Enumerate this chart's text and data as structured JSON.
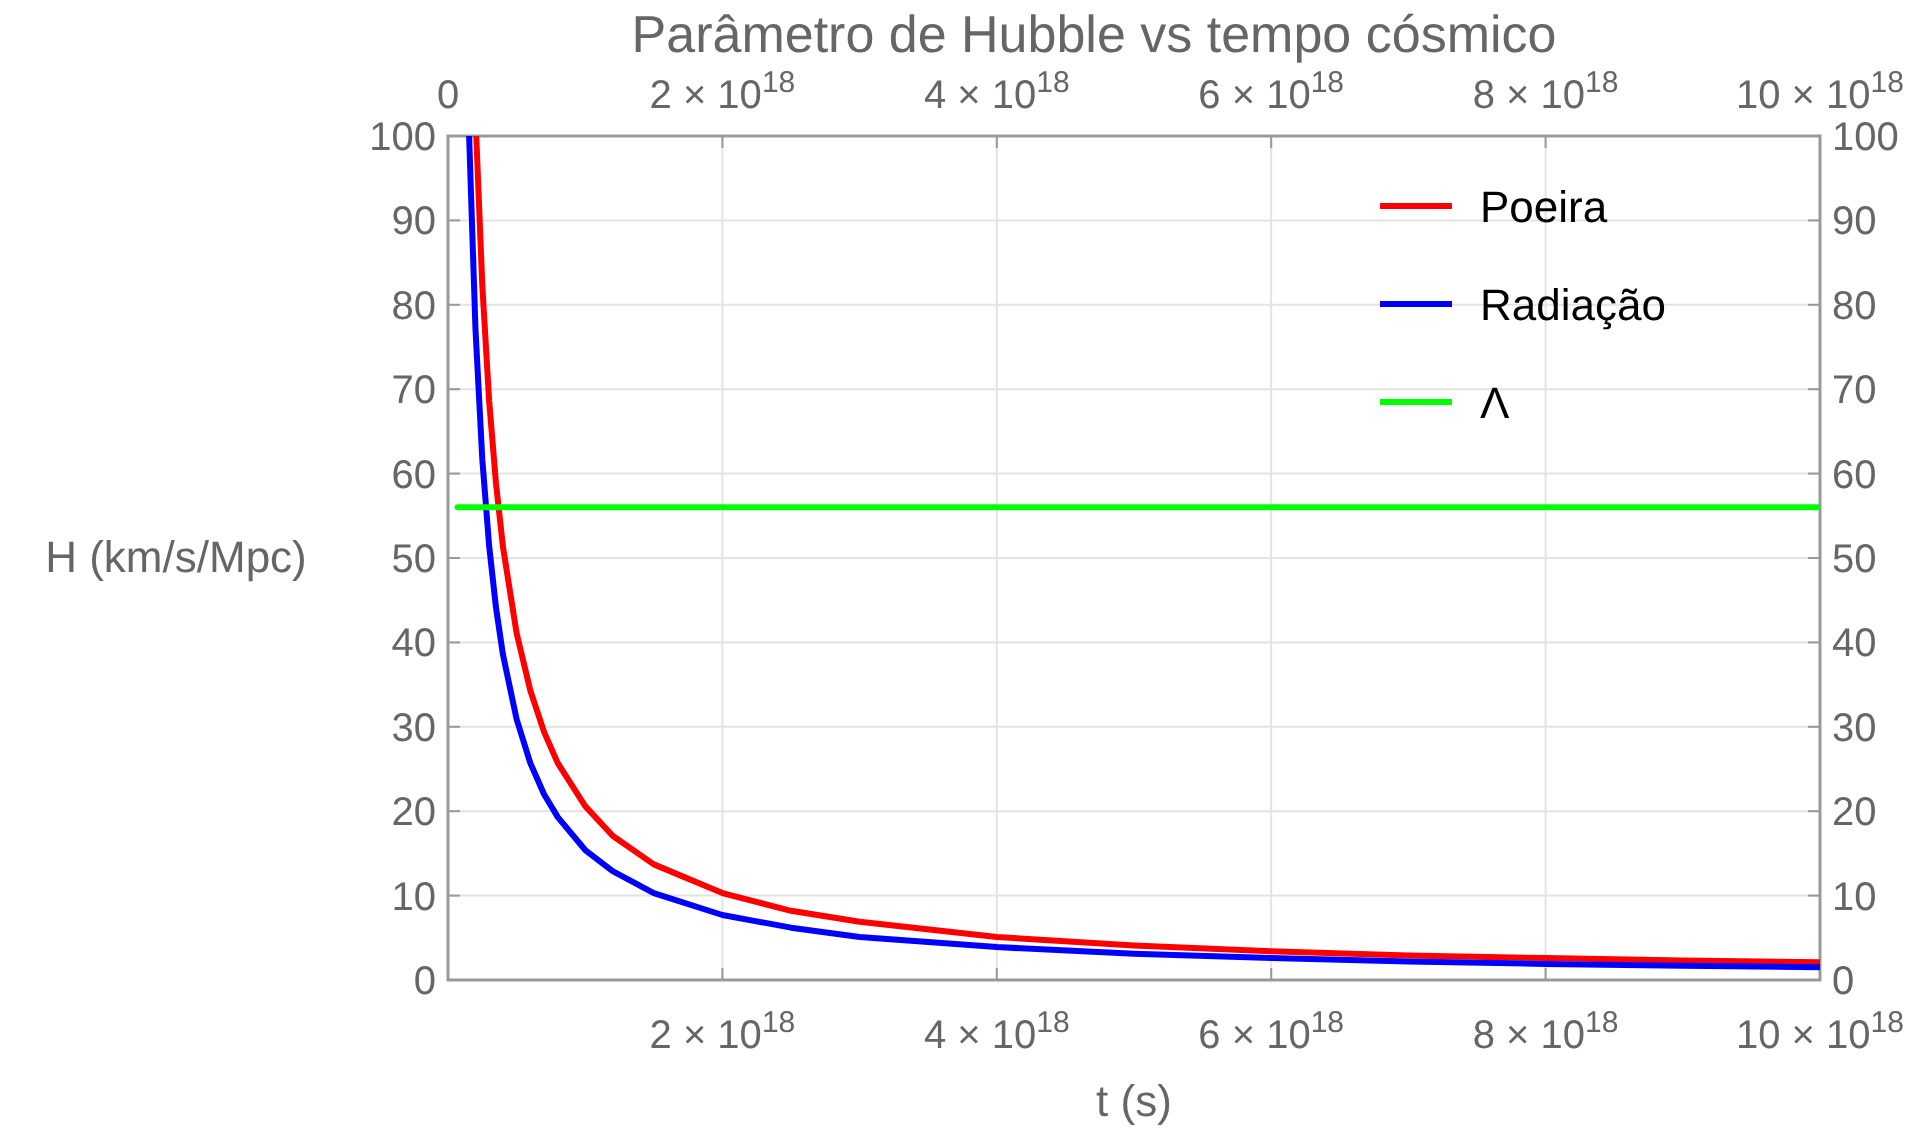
{
  "chart_data": {
    "type": "line",
    "title": "Parâmetro de Hubble vs tempo cósmico",
    "xlabel": "t (s)",
    "ylabel": "H (km/s/Mpc)",
    "xlim": [
      0,
      1e+19
    ],
    "xticks": [
      {
        "value": 2e+18,
        "label": "2 × 10$^{18}$"
      },
      {
        "value": 4e+18,
        "label": "4 × 10$^{18}$"
      },
      {
        "value": 6e+18,
        "label": "6 × 10$^{18}$"
      },
      {
        "value": 8e+18,
        "label": "8 × 10$^{18}$"
      },
      {
        "value": 1e+19,
        "label": "10 × 10$^{18}$"
      }
    ],
    "x2lim": [
      0,
      1e+19
    ],
    "x2ticks": [
      0,
      {
        "value": 2e+18,
        "label": "2 × 10$^{18}$"
      },
      {
        "value": 4e+18,
        "label": "4 × 10$^{18}$"
      },
      {
        "value": 6e+18,
        "label": "6 × 10$^{18}$"
      },
      {
        "value": 8e+18,
        "label": "8 × 10$^{18}$"
      },
      {
        "value": 1e+19,
        "label": "10 × 10$^{18}$"
      }
    ],
    "ylim": [
      0,
      100
    ],
    "yticks": [
      0,
      10,
      20,
      30,
      40,
      50,
      60,
      70,
      80,
      90,
      100
    ],
    "y2lim": [
      0,
      100
    ],
    "y2ticks": [
      0,
      10,
      20,
      30,
      40,
      50,
      60,
      70,
      80,
      90,
      100
    ],
    "grid": true,
    "legend": "top right",
    "line_style": "solid",
    "marker": "none",
    "series": [
      {
        "name": "Poeira",
        "color": "#ff0000",
        "x": [
          2.06e+17,
          2.5e+17,
          3e+17,
          3.5e+17,
          4e+17,
          5e+17,
          6e+17,
          7e+17,
          8e+17,
          1e+18,
          1.2e+18,
          1.5e+18,
          2e+18,
          2.5e+18,
          3e+18,
          4e+18,
          5e+18,
          6e+18,
          7e+18,
          8e+18,
          9e+18,
          1e+19
        ],
        "values": [
          100,
          82.3,
          68.6,
          58.8,
          51.4,
          41.1,
          34.3,
          29.4,
          25.7,
          20.6,
          17.1,
          13.7,
          10.3,
          8.2,
          6.9,
          5.1,
          4.1,
          3.4,
          2.9,
          2.6,
          2.3,
          2.1
        ]
      },
      {
        "name": "Radiação",
        "color": "#0000ff",
        "x": [
          1.54e+17,
          2e+17,
          2.5e+17,
          3e+17,
          3.5e+17,
          4e+17,
          5e+17,
          6e+17,
          7e+17,
          8e+17,
          1e+18,
          1.2e+18,
          1.5e+18,
          2e+18,
          2.5e+18,
          3e+18,
          4e+18,
          5e+18,
          6e+18,
          7e+18,
          8e+18,
          9e+18,
          1e+19
        ],
        "values": [
          100,
          77.2,
          61.7,
          51.4,
          44.1,
          38.6,
          30.9,
          25.7,
          22.0,
          19.3,
          15.4,
          12.9,
          10.3,
          7.7,
          6.2,
          5.1,
          3.9,
          3.1,
          2.6,
          2.2,
          1.9,
          1.7,
          1.5
        ]
      },
      {
        "name": "Λ",
        "color": "#00ff00",
        "type": "line",
        "x": [
          7e+16,
          1e+19
        ],
        "values": [
          56,
          56
        ]
      }
    ]
  }
}
